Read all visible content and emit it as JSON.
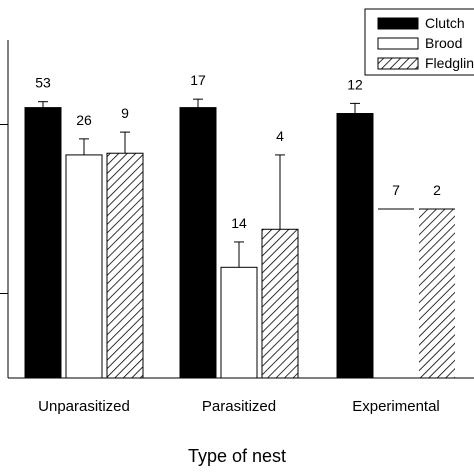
{
  "chart_data": {
    "type": "bar",
    "title": "",
    "xlabel": "Type of nest",
    "ylabel": "",
    "categories": [
      "Unparasitized",
      "Parasitized",
      "Experimental"
    ],
    "ylim": [
      0,
      4.0
    ],
    "series": [
      {
        "name": "Clutch",
        "fill": "solid-black",
        "values": [
          3.2,
          3.2,
          3.13
        ],
        "errors": [
          0.07,
          0.1,
          0.12
        ],
        "n": [
          "53",
          "17",
          "12"
        ]
      },
      {
        "name": "Brood",
        "fill": "white",
        "values": [
          2.64,
          1.31,
          2.0
        ],
        "errors": [
          0.19,
          0.3,
          0.0
        ],
        "n": [
          "26",
          "14",
          "7"
        ]
      },
      {
        "name": "Fledglings",
        "fill": "diagonal-hatch",
        "values": [
          2.66,
          1.76,
          2.0
        ],
        "errors": [
          0.25,
          0.88,
          0.0
        ],
        "n": [
          "9",
          "4",
          "2"
        ]
      }
    ],
    "legend": {
      "placement": "top-right"
    },
    "grid": false,
    "colors": {
      "solid": "#000000",
      "hollow": "#ffffff",
      "hatch": "#000000"
    }
  }
}
